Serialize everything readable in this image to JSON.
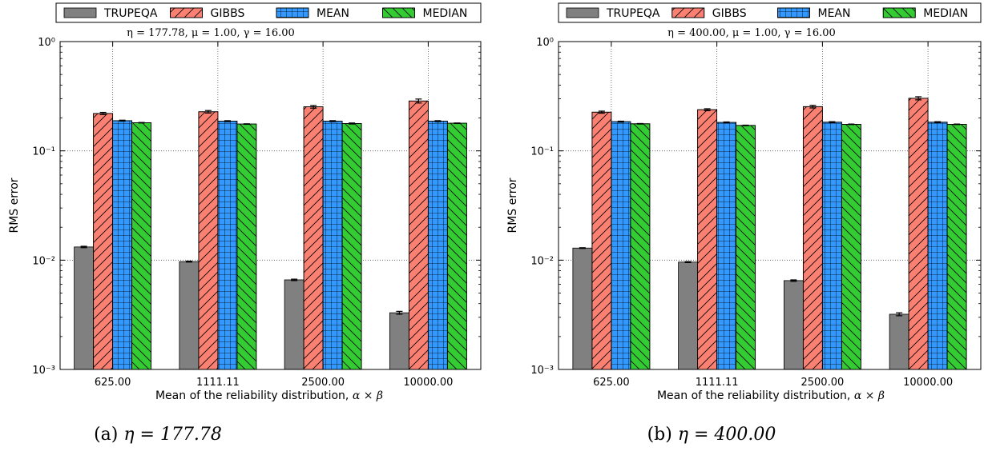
{
  "legend": [
    "TRUPEQA",
    "GIBBS",
    "MEAN",
    "MEDIAN"
  ],
  "colors": {
    "TRUPEQA": "#808080",
    "GIBBS": "#fa8072",
    "MEAN": "#3399ff",
    "MEDIAN": "#33cc33"
  },
  "chart_data": [
    {
      "type": "bar",
      "log_scale": true,
      "params_label": "η = 177.78, μ = 1.00, γ = 16.00",
      "caption_prefix": "(a) ",
      "caption_eta": "η = 177.78",
      "xlabel_text": "Mean of the reliability distribution, ",
      "xlabel_math": "α × β",
      "ylabel": "RMS error",
      "categories": [
        "625.00",
        "1111.11",
        "2500.00",
        "10000.00"
      ],
      "ylim": [
        0.001,
        1
      ],
      "yticks": [
        "10⁻³",
        "10⁻²",
        "10⁻¹",
        "10⁰"
      ],
      "grid": true,
      "legend_position": "top",
      "series": [
        {
          "name": "TRUPEQA",
          "values": [
            0.0132,
            0.0097,
            0.0066,
            0.0033
          ],
          "errors": [
            0.0002,
            0.0001,
            0.0001,
            0.0001
          ]
        },
        {
          "name": "GIBBS",
          "values": [
            0.22,
            0.228,
            0.253,
            0.286
          ],
          "errors": [
            0.005,
            0.006,
            0.007,
            0.012
          ]
        },
        {
          "name": "MEAN",
          "values": [
            0.189,
            0.187,
            0.187,
            0.187
          ],
          "errors": [
            0.002,
            0.002,
            0.002,
            0.002
          ]
        },
        {
          "name": "MEDIAN",
          "values": [
            0.181,
            0.176,
            0.178,
            0.179
          ],
          "errors": [
            0.001,
            0.001,
            0.002,
            0.001
          ]
        }
      ]
    },
    {
      "type": "bar",
      "log_scale": true,
      "params_label": "η = 400.00, μ = 1.00, γ = 16.00",
      "caption_prefix": "(b) ",
      "caption_eta": "η = 400.00",
      "xlabel_text": "Mean of the reliability distribution, ",
      "xlabel_math": "α × β",
      "ylabel": "RMS error",
      "categories": [
        "625.00",
        "1111.11",
        "2500.00",
        "10000.00"
      ],
      "ylim": [
        0.001,
        1
      ],
      "yticks": [
        "10⁻³",
        "10⁻²",
        "10⁻¹",
        "10⁰"
      ],
      "grid": true,
      "legend_position": "top",
      "series": [
        {
          "name": "TRUPEQA",
          "values": [
            0.0129,
            0.0096,
            0.0065,
            0.0032
          ],
          "errors": [
            0.0001,
            0.0001,
            0.0001,
            0.0001
          ]
        },
        {
          "name": "GIBBS",
          "values": [
            0.226,
            0.238,
            0.254,
            0.303
          ],
          "errors": [
            0.005,
            0.005,
            0.007,
            0.01
          ]
        },
        {
          "name": "MEAN",
          "values": [
            0.185,
            0.182,
            0.183,
            0.183
          ],
          "errors": [
            0.002,
            0.002,
            0.002,
            0.002
          ]
        },
        {
          "name": "MEDIAN",
          "values": [
            0.177,
            0.171,
            0.175,
            0.175
          ],
          "errors": [
            0.001,
            0.001,
            0.001,
            0.001
          ]
        }
      ]
    }
  ]
}
